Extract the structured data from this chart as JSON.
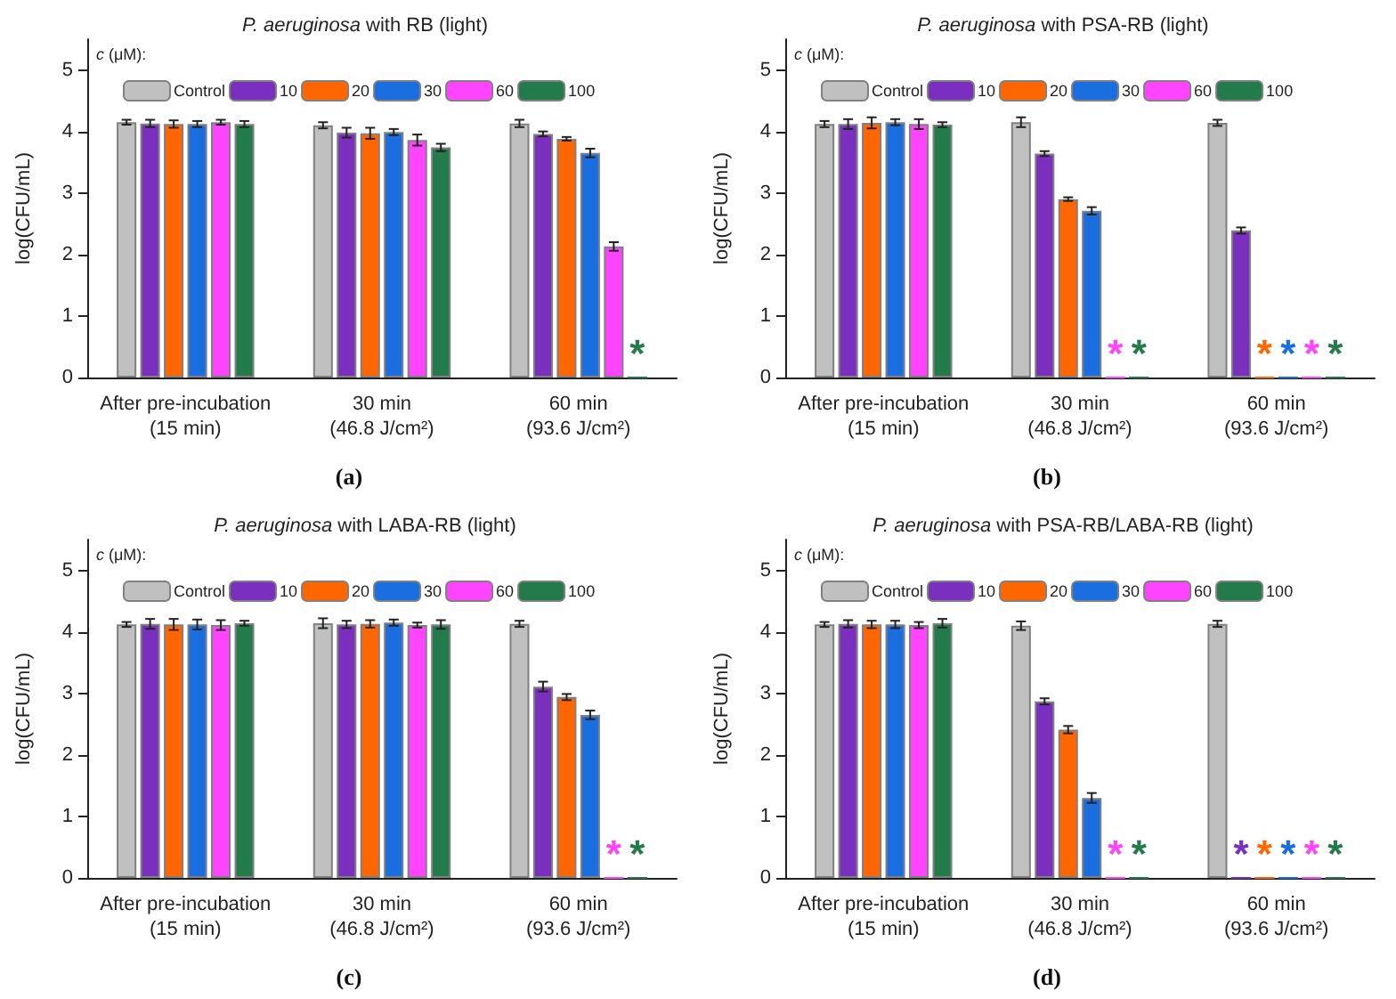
{
  "chart_data": [
    {
      "type": "bar",
      "title": "P. aeruginosa with RB (light)",
      "ylabel": "log(CFU/mL)",
      "legend_title": "c (μM):",
      "legend": "top left",
      "grid": false,
      "annotations": [
        "(a)"
      ],
      "categories": [
        "After pre-incubation\n(15 min)",
        "30 min\n(46.8 J/cm²)",
        "60 min\n(93.6 J/cm²)"
      ],
      "ylim": [
        0,
        5.5
      ],
      "yticks": [
        0,
        1,
        2,
        3,
        4,
        5
      ],
      "series": [
        {
          "name": "Control",
          "color": "#c0c0c0",
          "values": [
            4.15,
            4.1,
            4.13
          ],
          "errors": [
            0.04,
            0.05,
            0.06
          ]
        },
        {
          "name": "10",
          "color": "#7b2fbe",
          "values": [
            4.13,
            3.98,
            3.96
          ],
          "errors": [
            0.06,
            0.08,
            0.04
          ]
        },
        {
          "name": "20",
          "color": "#ff6600",
          "values": [
            4.12,
            3.97,
            3.88
          ],
          "errors": [
            0.06,
            0.09,
            0.03
          ]
        },
        {
          "name": "30",
          "color": "#1a6ee0",
          "values": [
            4.12,
            3.99,
            3.65
          ],
          "errors": [
            0.05,
            0.05,
            0.07
          ]
        },
        {
          "name": "60",
          "color": "#ff44ff",
          "values": [
            4.15,
            3.86,
            2.13
          ],
          "errors": [
            0.04,
            0.09,
            0.07
          ]
        },
        {
          "name": "100",
          "color": "#237a4a",
          "values": [
            4.12,
            3.74,
            0
          ],
          "errors": [
            0.05,
            0.06,
            null
          ],
          "value_labels": [
            null,
            null,
            "*"
          ]
        }
      ]
    },
    {
      "type": "bar",
      "title": "P. aeruginosa with PSA-RB (light)",
      "ylabel": "log(CFU/mL)",
      "legend_title": "c (μM):",
      "legend": "top left",
      "grid": false,
      "annotations": [
        "(b)"
      ],
      "categories": [
        "After pre-incubation\n(15 min)",
        "30 min\n(46.8 J/cm²)",
        "60 min\n(93.6 J/cm²)"
      ],
      "ylim": [
        0,
        5.5
      ],
      "yticks": [
        0,
        1,
        2,
        3,
        4,
        5
      ],
      "series": [
        {
          "name": "Control",
          "color": "#c0c0c0",
          "values": [
            4.12,
            4.15,
            4.14
          ],
          "errors": [
            0.05,
            0.08,
            0.05
          ]
        },
        {
          "name": "10",
          "color": "#7b2fbe",
          "values": [
            4.12,
            3.64,
            2.39
          ],
          "errors": [
            0.08,
            0.04,
            0.05
          ]
        },
        {
          "name": "20",
          "color": "#ff6600",
          "values": [
            4.14,
            2.9,
            0
          ],
          "errors": [
            0.09,
            0.03,
            null
          ],
          "value_labels": [
            null,
            null,
            "*"
          ]
        },
        {
          "name": "30",
          "color": "#1a6ee0",
          "values": [
            4.15,
            2.71,
            0
          ],
          "errors": [
            0.05,
            0.06,
            null
          ],
          "value_labels": [
            null,
            null,
            "*"
          ]
        },
        {
          "name": "60",
          "color": "#ff44ff",
          "values": [
            4.12,
            0,
            0
          ],
          "errors": [
            0.08,
            null,
            null
          ],
          "value_labels": [
            null,
            "*",
            "*"
          ]
        },
        {
          "name": "100",
          "color": "#237a4a",
          "values": [
            4.11,
            0,
            0
          ],
          "errors": [
            0.04,
            null,
            null
          ],
          "value_labels": [
            null,
            "*",
            "*"
          ]
        }
      ]
    },
    {
      "type": "bar",
      "title": "P. aeruginosa with LABA-RB (light)",
      "ylabel": "log(CFU/mL)",
      "legend_title": "c (μM):",
      "legend": "top left",
      "grid": false,
      "annotations": [
        "(c)"
      ],
      "categories": [
        "After pre-incubation\n(15 min)",
        "30 min\n(46.8 J/cm²)",
        "60 min\n(93.6 J/cm²)"
      ],
      "ylim": [
        0,
        5.5
      ],
      "yticks": [
        0,
        1,
        2,
        3,
        4,
        5
      ],
      "series": [
        {
          "name": "Control",
          "color": "#c0c0c0",
          "values": [
            4.12,
            4.14,
            4.13
          ],
          "errors": [
            0.04,
            0.08,
            0.05
          ]
        },
        {
          "name": "10",
          "color": "#7b2fbe",
          "values": [
            4.13,
            4.12,
            3.11
          ],
          "errors": [
            0.08,
            0.06,
            0.08
          ]
        },
        {
          "name": "20",
          "color": "#ff6600",
          "values": [
            4.12,
            4.13,
            2.94
          ],
          "errors": [
            0.09,
            0.06,
            0.05
          ]
        },
        {
          "name": "30",
          "color": "#1a6ee0",
          "values": [
            4.12,
            4.15,
            2.65
          ],
          "errors": [
            0.08,
            0.05,
            0.07
          ]
        },
        {
          "name": "60",
          "color": "#ff44ff",
          "values": [
            4.11,
            4.11,
            0
          ],
          "errors": [
            0.08,
            0.04,
            null
          ],
          "value_labels": [
            null,
            null,
            "*"
          ]
        },
        {
          "name": "100",
          "color": "#237a4a",
          "values": [
            4.14,
            4.12,
            0
          ],
          "errors": [
            0.04,
            0.07,
            null
          ],
          "value_labels": [
            null,
            null,
            "*"
          ]
        }
      ]
    },
    {
      "type": "bar",
      "title": "P. aeruginosa with PSA-RB/LABA-RB (light)",
      "ylabel": "log(CFU/mL)",
      "legend_title": "c (μM):",
      "legend": "top left",
      "grid": false,
      "annotations": [
        "(d)"
      ],
      "categories": [
        "After pre-incubation\n(15 min)",
        "30 min\n(46.8 J/cm²)",
        "60 min\n(93.6 J/cm²)"
      ],
      "ylim": [
        0,
        5.5
      ],
      "yticks": [
        0,
        1,
        2,
        3,
        4,
        5
      ],
      "series": [
        {
          "name": "Control",
          "color": "#c0c0c0",
          "values": [
            4.12,
            4.1,
            4.13
          ],
          "errors": [
            0.04,
            0.07,
            0.05
          ]
        },
        {
          "name": "10",
          "color": "#7b2fbe",
          "values": [
            4.13,
            2.87,
            0
          ],
          "errors": [
            0.06,
            0.05,
            null
          ],
          "value_labels": [
            null,
            null,
            "*"
          ]
        },
        {
          "name": "20",
          "color": "#ff6600",
          "values": [
            4.12,
            2.41,
            0
          ],
          "errors": [
            0.06,
            0.06,
            null
          ],
          "value_labels": [
            null,
            null,
            "*"
          ]
        },
        {
          "name": "30",
          "color": "#1a6ee0",
          "values": [
            4.12,
            1.3,
            0
          ],
          "errors": [
            0.06,
            0.08,
            null
          ],
          "value_labels": [
            null,
            null,
            "*"
          ]
        },
        {
          "name": "60",
          "color": "#ff44ff",
          "values": [
            4.11,
            0,
            0
          ],
          "errors": [
            0.05,
            null,
            null
          ],
          "value_labels": [
            null,
            "*",
            "*"
          ]
        },
        {
          "name": "100",
          "color": "#237a4a",
          "values": [
            4.14,
            0,
            0
          ],
          "errors": [
            0.07,
            null,
            null
          ],
          "value_labels": [
            null,
            "*",
            "*"
          ]
        }
      ]
    }
  ]
}
